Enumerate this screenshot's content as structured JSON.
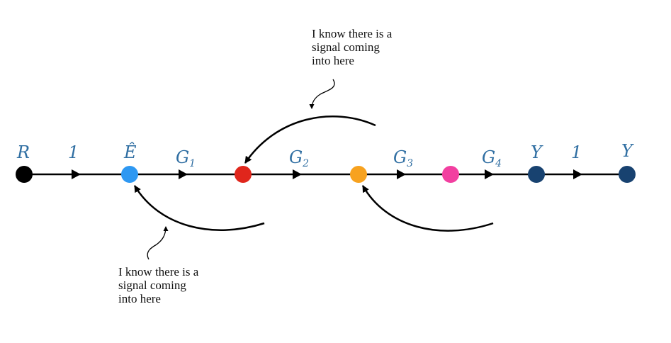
{
  "nodes": [
    {
      "id": "R",
      "label": "R",
      "color": "#000000"
    },
    {
      "id": "Ehat",
      "label": "Ê",
      "color": "#2e98f2"
    },
    {
      "id": "n2",
      "label": "",
      "color": "#e0261c"
    },
    {
      "id": "n3",
      "label": "",
      "color": "#f7a21f"
    },
    {
      "id": "n4",
      "label": "",
      "color": "#f23fa0"
    },
    {
      "id": "Y1",
      "label": "Y",
      "color": "#184270"
    },
    {
      "id": "Y2",
      "label": "Y",
      "color": "#184270"
    }
  ],
  "edges": [
    {
      "id": "e1",
      "label": "1",
      "sub": ""
    },
    {
      "id": "e2",
      "label": "G",
      "sub": "1"
    },
    {
      "id": "e3",
      "label": "G",
      "sub": "2"
    },
    {
      "id": "e4",
      "label": "G",
      "sub": "3"
    },
    {
      "id": "e5",
      "label": "G",
      "sub": "4"
    },
    {
      "id": "e6",
      "label": "1",
      "sub": ""
    }
  ],
  "annotations": {
    "top": [
      "I know there is a",
      "signal coming",
      "into here"
    ],
    "bottom": [
      "I know there is a",
      "signal coming",
      "into here"
    ]
  },
  "colors": {
    "label": "#2f6ea2",
    "line": "#000000"
  }
}
